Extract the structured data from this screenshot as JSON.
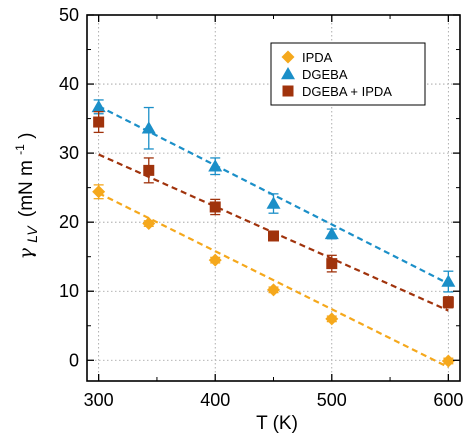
{
  "chart_data": {
    "type": "scatter",
    "xlabel": "T (K)",
    "ylabel": {
      "symbol": "γ",
      "subscript": "LV",
      "unit": "(mN m",
      "exponent": "-1",
      "close": ")"
    },
    "xlim": [
      290,
      610
    ],
    "ylim": [
      -3,
      50
    ],
    "xticks": [
      "300",
      "400",
      "500",
      "600"
    ],
    "yticks": [
      "0",
      "10",
      "20",
      "30",
      "40",
      "50"
    ],
    "grid": true,
    "legend_position": "top-right",
    "series": [
      {
        "name": "IPDA",
        "marker": "diamond",
        "color": "#F5A81C",
        "points": [
          {
            "x": 300,
            "y": 24.4,
            "err": 1.0
          },
          {
            "x": 343,
            "y": 19.8,
            "err": 0.4
          },
          {
            "x": 400,
            "y": 14.5,
            "err": 0.4
          },
          {
            "x": 450,
            "y": 10.2,
            "err": 0.4
          },
          {
            "x": 500,
            "y": 6.0,
            "err": 0.4
          },
          {
            "x": 600,
            "y": -0.1,
            "err": 0.4
          }
        ],
        "fit": {
          "x": [
            300,
            600
          ],
          "y": [
            24.2,
            -1.0
          ]
        }
      },
      {
        "name": "DGEBA",
        "marker": "triangle",
        "color": "#1B8FC8",
        "points": [
          {
            "x": 300,
            "y": 36.7,
            "err": 1.0
          },
          {
            "x": 343,
            "y": 33.6,
            "err": 3.0
          },
          {
            "x": 400,
            "y": 28.1,
            "err": 1.2
          },
          {
            "x": 450,
            "y": 22.7,
            "err": 1.4
          },
          {
            "x": 500,
            "y": 18.3,
            "err": 0.7
          },
          {
            "x": 600,
            "y": 11.4,
            "err": 1.5
          }
        ],
        "fit": {
          "x": [
            300,
            600
          ],
          "y": [
            36.8,
            11.1
          ]
        }
      },
      {
        "name": "DGEBA + IPDA",
        "marker": "square",
        "color": "#A0330C",
        "points": [
          {
            "x": 300,
            "y": 34.5,
            "err": 1.5
          },
          {
            "x": 343,
            "y": 27.5,
            "err": 1.8
          },
          {
            "x": 400,
            "y": 22.2,
            "err": 1.1
          },
          {
            "x": 450,
            "y": 18.0,
            "err": 0.6
          },
          {
            "x": 500,
            "y": 14.0,
            "err": 1.2
          },
          {
            "x": 600,
            "y": 8.4,
            "err": 0.8
          }
        ],
        "fit": {
          "x": [
            300,
            600
          ],
          "y": [
            29.8,
            7.2
          ]
        }
      }
    ]
  }
}
